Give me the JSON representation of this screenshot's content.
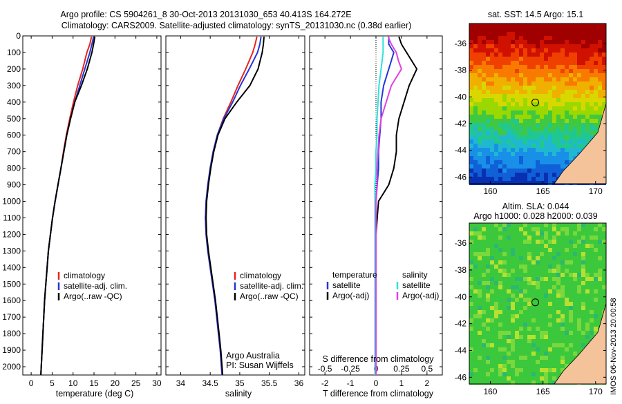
{
  "header": {
    "line1": "Argo profile: CS 5904261_8 30-Oct-2013 20131030_653 40.413S 164.272E",
    "line2": "Climatology: CARS2009. Satellite-adjusted climatology: synTS_20131030.nc (0.38d earlier)"
  },
  "colors": {
    "climatology": "#e8241c",
    "satellite": "#2236d8",
    "argo": "#000000",
    "salinity_sat": "#2fe0e0",
    "salinity_argo": "#e040e0",
    "land": "#f5c39a"
  },
  "chart_data": [
    {
      "type": "line",
      "panel": "temperature",
      "xlabel": "temperature (deg C)",
      "xlim": [
        -2,
        31
      ],
      "xticks": [
        0,
        5,
        10,
        15,
        20,
        25,
        30
      ],
      "ylim": [
        2050,
        0
      ],
      "yticks": [
        0,
        100,
        200,
        300,
        400,
        500,
        600,
        700,
        800,
        900,
        1000,
        1100,
        1200,
        1300,
        1400,
        1500,
        1600,
        1700,
        1800,
        1900,
        2000
      ],
      "y": [
        5,
        50,
        100,
        200,
        300,
        400,
        500,
        600,
        700,
        800,
        900,
        1000,
        1100,
        1200,
        1300,
        1400,
        1500,
        1600,
        1700,
        1800,
        1900,
        2000,
        2050
      ],
      "series": [
        {
          "name": "climatology",
          "values": [
            14.4,
            14.0,
            13.3,
            12.3,
            11.1,
            10.1,
            9.2,
            8.4,
            7.7,
            7.1,
            6.4,
            5.7,
            5.1,
            4.6,
            4.1,
            3.8,
            3.5,
            3.2,
            3.0,
            2.8,
            2.6,
            2.4,
            2.3
          ]
        },
        {
          "name": "satellite-adj. clim.",
          "values": [
            14.9,
            14.5,
            14.0,
            12.8,
            11.6,
            10.4,
            9.4,
            8.5,
            7.8,
            7.1,
            6.4,
            5.7,
            5.1,
            4.6,
            4.1,
            3.8,
            3.5,
            3.2,
            3.0,
            2.8,
            2.6,
            2.4,
            2.3
          ]
        },
        {
          "name": "Argo(..raw -QC)",
          "values": [
            15.2,
            14.9,
            14.5,
            13.4,
            12.0,
            10.4,
            9.4,
            8.5,
            7.8,
            7.1,
            6.4,
            5.7,
            5.1,
            4.6,
            4.1,
            3.8,
            3.5,
            3.2,
            3.0,
            2.8,
            2.6,
            2.4,
            2.3
          ]
        }
      ]
    },
    {
      "type": "line",
      "panel": "salinity",
      "xlabel": "salinity",
      "xlim": [
        33.75,
        36.1
      ],
      "xticks": [
        34,
        34.5,
        35,
        35.5,
        36
      ],
      "ylim": [
        2050,
        0
      ],
      "y": [
        5,
        50,
        100,
        200,
        300,
        400,
        500,
        600,
        700,
        800,
        900,
        1000,
        1100,
        1200,
        1300,
        1400,
        1500,
        1600,
        1700,
        1800,
        1900,
        2000,
        2050
      ],
      "series": [
        {
          "name": "climatology",
          "values": [
            35.29,
            35.26,
            35.22,
            35.1,
            34.97,
            34.85,
            34.72,
            34.62,
            34.55,
            34.5,
            34.46,
            34.43,
            34.42,
            34.43,
            34.46,
            34.5,
            34.54,
            34.58,
            34.61,
            34.64,
            34.67,
            34.69,
            34.7
          ]
        },
        {
          "name": "satellite-adj. clim.",
          "values": [
            35.36,
            35.34,
            35.3,
            35.16,
            35.01,
            34.88,
            34.73,
            34.62,
            34.55,
            34.5,
            34.46,
            34.43,
            34.42,
            34.43,
            34.46,
            34.5,
            34.54,
            34.58,
            34.61,
            34.64,
            34.67,
            34.69,
            34.7
          ]
        },
        {
          "name": "Argo(..raw -QC)",
          "values": [
            35.41,
            35.4,
            35.38,
            35.31,
            35.17,
            34.95,
            34.75,
            34.63,
            34.56,
            34.51,
            34.47,
            34.44,
            34.43,
            34.44,
            34.47,
            34.51,
            34.55,
            34.59,
            34.62,
            34.65,
            34.68,
            34.7,
            34.71
          ]
        }
      ]
    },
    {
      "type": "line",
      "panel": "difference",
      "xlabel": "T difference from climatology",
      "xlabel2": "S difference from climatology",
      "xlim": [
        -2.6,
        2.6
      ],
      "xticks": [
        -2,
        -1,
        0,
        1,
        2
      ],
      "xticks_s": [
        "-0.5",
        "-0.25",
        "0",
        "0.25",
        "0.5"
      ],
      "ylim": [
        2050,
        0
      ],
      "y": [
        5,
        50,
        100,
        150,
        200,
        300,
        400,
        500,
        600,
        700,
        800,
        900,
        1000,
        1100,
        1200,
        1300,
        1400,
        1500,
        1600,
        1700,
        1800,
        1900,
        2000,
        2050
      ],
      "series": [
        {
          "name": "temperature satellite",
          "values": [
            0.5,
            0.5,
            0.7,
            0.6,
            0.5,
            0.3,
            0.2,
            0.2,
            0.15,
            0.1,
            0.1,
            0.05,
            0.0,
            0.0,
            0.0,
            0.0,
            0.0,
            0.0,
            0.0,
            0.0,
            0.0,
            0.0,
            0.0,
            0.0
          ]
        },
        {
          "name": "temperature Argo(-adj)",
          "values": [
            0.9,
            1.0,
            1.2,
            1.4,
            1.6,
            1.3,
            1.1,
            0.9,
            0.8,
            0.8,
            0.7,
            0.5,
            0.1,
            0.05,
            0.0,
            0.0,
            0.0,
            0.0,
            0.0,
            0.0,
            0.0,
            0.0,
            0.0,
            0.0
          ]
        },
        {
          "name": "salinity satellite",
          "values": [
            0.07,
            0.07,
            0.07,
            0.06,
            0.05,
            0.03,
            0.02,
            0.01,
            0.01,
            0.0,
            0.0,
            -0.01,
            -0.01,
            -0.01,
            -0.01,
            -0.01,
            -0.01,
            -0.01,
            -0.01,
            -0.01,
            -0.01,
            -0.01,
            -0.01,
            -0.01
          ]
        },
        {
          "name": "salinity Argo(-adj)",
          "values": [
            0.12,
            0.15,
            0.2,
            0.22,
            0.25,
            0.15,
            0.1,
            0.05,
            0.03,
            0.02,
            0.01,
            0.01,
            0.0,
            0.0,
            0.0,
            0.0,
            0.0,
            0.0,
            0.0,
            0.0,
            0.0,
            0.0,
            0.0,
            0.0
          ]
        }
      ]
    }
  ],
  "legends": {
    "temp": [
      "climatology",
      "satellite-adj. clim.",
      "Argo(..raw -QC)"
    ],
    "sal": [
      "climatology",
      "satellite-adj. clim.",
      "Argo(..raw -QC)"
    ],
    "diff_t_title": "temperature",
    "diff_s_title": "salinity",
    "diff_t": [
      "satellite",
      "Argo(-adj)"
    ],
    "diff_s": [
      "satellite",
      "Argo(-adj)"
    ]
  },
  "annotation": {
    "line1": "Argo Australia",
    "line2": "PI: Susan Wijffels"
  },
  "map_sst": {
    "title": "sat. SST: 14.5  Argo: 15.1",
    "lon_ticks": [
      160,
      165,
      170
    ],
    "lat_ticks": [
      -36,
      -38,
      -40,
      -42,
      -44,
      -46
    ],
    "lon_range": [
      158,
      171
    ],
    "lat_range": [
      -46.5,
      -34.5
    ],
    "argo_lon": 164.272,
    "argo_lat": -40.413
  },
  "map_sla": {
    "title1": "Altim. SLA: 0.044",
    "title2": "Argo h1000: 0.028  h2000: 0.039",
    "lon_ticks": [
      160,
      165,
      170
    ],
    "lat_ticks": [
      -36,
      -38,
      -40,
      -42,
      -44,
      -46
    ],
    "lon_range": [
      158,
      171
    ],
    "lat_range": [
      -46.5,
      -34.5
    ],
    "argo_lon": 164.272,
    "argo_lat": -40.413
  },
  "credit": "IMOS 06-Nov-2013 20:00:58"
}
